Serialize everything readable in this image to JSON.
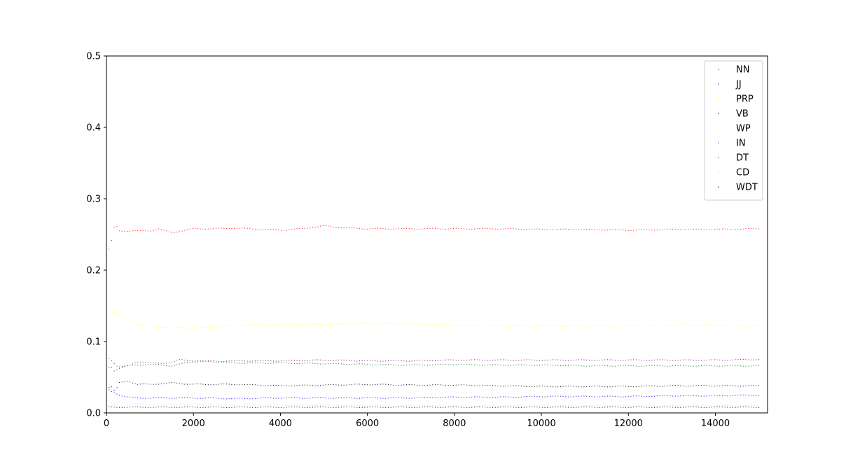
{
  "chart_data": {
    "type": "scatter",
    "title": "",
    "xlabel": "",
    "ylabel": "",
    "xlim": [
      0,
      15200
    ],
    "ylim": [
      0,
      0.5
    ],
    "xticks": [
      0,
      2000,
      4000,
      6000,
      8000,
      10000,
      12000,
      14000
    ],
    "yticks": [
      0.0,
      0.1,
      0.2,
      0.3,
      0.4,
      0.5
    ],
    "xtick_labels": [
      "0",
      "2000",
      "4000",
      "6000",
      "8000",
      "10000",
      "12000",
      "14000"
    ],
    "ytick_labels": [
      "0.0",
      "0.1",
      "0.2",
      "0.3",
      "0.4",
      "0.5"
    ],
    "grid": false,
    "legend_position": "top-right",
    "marker": "small dot",
    "x_range": [
      0,
      15000
    ],
    "series": [
      {
        "name": "NN",
        "color": "#ff0000",
        "x": [
          0,
          100,
          200,
          300,
          500,
          700,
          1000,
          1200,
          1500,
          1800,
          2000,
          2500,
          3000,
          3500,
          4000,
          4500,
          5000,
          5500,
          6000,
          7000,
          8000,
          9000,
          10000,
          11000,
          12000,
          13000,
          14000,
          15000
        ],
        "y": [
          0.22,
          0.235,
          0.265,
          0.255,
          0.255,
          0.255,
          0.255,
          0.258,
          0.252,
          0.256,
          0.258,
          0.258,
          0.259,
          0.257,
          0.256,
          0.258,
          0.262,
          0.259,
          0.258,
          0.258,
          0.258,
          0.258,
          0.257,
          0.257,
          0.256,
          0.257,
          0.257,
          0.258
        ]
      },
      {
        "name": "JJ",
        "color": "#0000ff",
        "x": [
          0,
          100,
          200,
          300,
          500,
          700,
          1000,
          1500,
          2000,
          3000,
          4000,
          5000,
          6000,
          7000,
          8000,
          9000,
          10000,
          11000,
          12000,
          13000,
          14000,
          15000
        ],
        "y": [
          0.035,
          0.03,
          0.028,
          0.025,
          0.022,
          0.021,
          0.021,
          0.021,
          0.021,
          0.02,
          0.021,
          0.021,
          0.021,
          0.021,
          0.022,
          0.022,
          0.023,
          0.023,
          0.023,
          0.024,
          0.024,
          0.025
        ]
      },
      {
        "name": "PRP",
        "color": "#ffff00",
        "x": [
          0,
          100,
          200,
          300,
          500,
          700,
          1000,
          1500,
          2000,
          3000,
          4000,
          5000,
          6000,
          7000,
          8000,
          9000,
          10000,
          11000,
          12000,
          13000,
          14000,
          15000
        ],
        "y": [
          0.148,
          0.146,
          0.14,
          0.135,
          0.128,
          0.125,
          0.122,
          0.119,
          0.119,
          0.123,
          0.124,
          0.124,
          0.125,
          0.125,
          0.123,
          0.122,
          0.122,
          0.122,
          0.122,
          0.123,
          0.123,
          0.122
        ]
      },
      {
        "name": "VB",
        "color": "#000000",
        "x": [
          0,
          100,
          200,
          300,
          500,
          700,
          1000,
          1500,
          2000,
          3000,
          4000,
          5000,
          6000,
          7000,
          8000,
          9000,
          10000,
          11000,
          12000,
          13000,
          14000,
          15000
        ],
        "y": [
          0.033,
          0.038,
          0.03,
          0.042,
          0.045,
          0.04,
          0.04,
          0.042,
          0.04,
          0.04,
          0.038,
          0.039,
          0.04,
          0.039,
          0.039,
          0.038,
          0.037,
          0.037,
          0.037,
          0.038,
          0.038,
          0.038
        ]
      },
      {
        "name": "WP",
        "color": "#ffff99",
        "x": [
          0,
          200,
          500,
          1000,
          2000,
          4000,
          6000,
          8000,
          10000,
          12000,
          14000,
          15000
        ],
        "y": [
          0.004,
          0.003,
          0.003,
          0.002,
          0.002,
          0.002,
          0.002,
          0.002,
          0.002,
          0.002,
          0.002,
          0.002
        ]
      },
      {
        "name": "IN",
        "color": "#800080",
        "x": [
          0,
          100,
          200,
          300,
          500,
          700,
          1000,
          1500,
          2000,
          3000,
          4000,
          5000,
          6000,
          7000,
          8000,
          9000,
          10000,
          11000,
          12000,
          13000,
          14000,
          15000
        ],
        "y": [
          0.06,
          0.065,
          0.058,
          0.065,
          0.066,
          0.067,
          0.068,
          0.066,
          0.072,
          0.073,
          0.073,
          0.074,
          0.073,
          0.073,
          0.074,
          0.074,
          0.074,
          0.074,
          0.074,
          0.074,
          0.074,
          0.075
        ]
      },
      {
        "name": "DT",
        "color": "#008000",
        "x": [
          0,
          100,
          200,
          300,
          500,
          700,
          1000,
          1500,
          1700,
          2000,
          3000,
          4000,
          5000,
          6000,
          7000,
          8000,
          9000,
          10000,
          11000,
          12000,
          13000,
          14000,
          15000
        ],
        "y": [
          0.08,
          0.075,
          0.068,
          0.062,
          0.066,
          0.072,
          0.07,
          0.07,
          0.075,
          0.073,
          0.07,
          0.07,
          0.069,
          0.068,
          0.067,
          0.068,
          0.067,
          0.067,
          0.066,
          0.066,
          0.066,
          0.066,
          0.066
        ]
      },
      {
        "name": "CD",
        "color": "#ffc0cb",
        "x": [
          0,
          100,
          200,
          300,
          500,
          1000,
          1500,
          2000,
          3000,
          4000,
          5000,
          6000,
          7000,
          8000,
          9000,
          10000,
          11000,
          12000,
          13000,
          14000,
          15000
        ],
        "y": [
          0.02,
          0.015,
          0.012,
          0.015,
          0.013,
          0.012,
          0.012,
          0.012,
          0.011,
          0.011,
          0.011,
          0.01,
          0.01,
          0.01,
          0.01,
          0.01,
          0.01,
          0.01,
          0.01,
          0.01,
          0.01
        ]
      },
      {
        "name": "WDT",
        "color": "#000080",
        "x": [
          0,
          200,
          500,
          1000,
          1500,
          2000,
          3000,
          4000,
          5000,
          6000,
          7000,
          8000,
          9000,
          10000,
          11000,
          12000,
          13000,
          14000,
          15000
        ],
        "y": [
          0.008,
          0.008,
          0.008,
          0.008,
          0.008,
          0.008,
          0.008,
          0.008,
          0.008,
          0.008,
          0.008,
          0.008,
          0.008,
          0.008,
          0.008,
          0.008,
          0.008,
          0.008,
          0.008
        ]
      }
    ]
  }
}
